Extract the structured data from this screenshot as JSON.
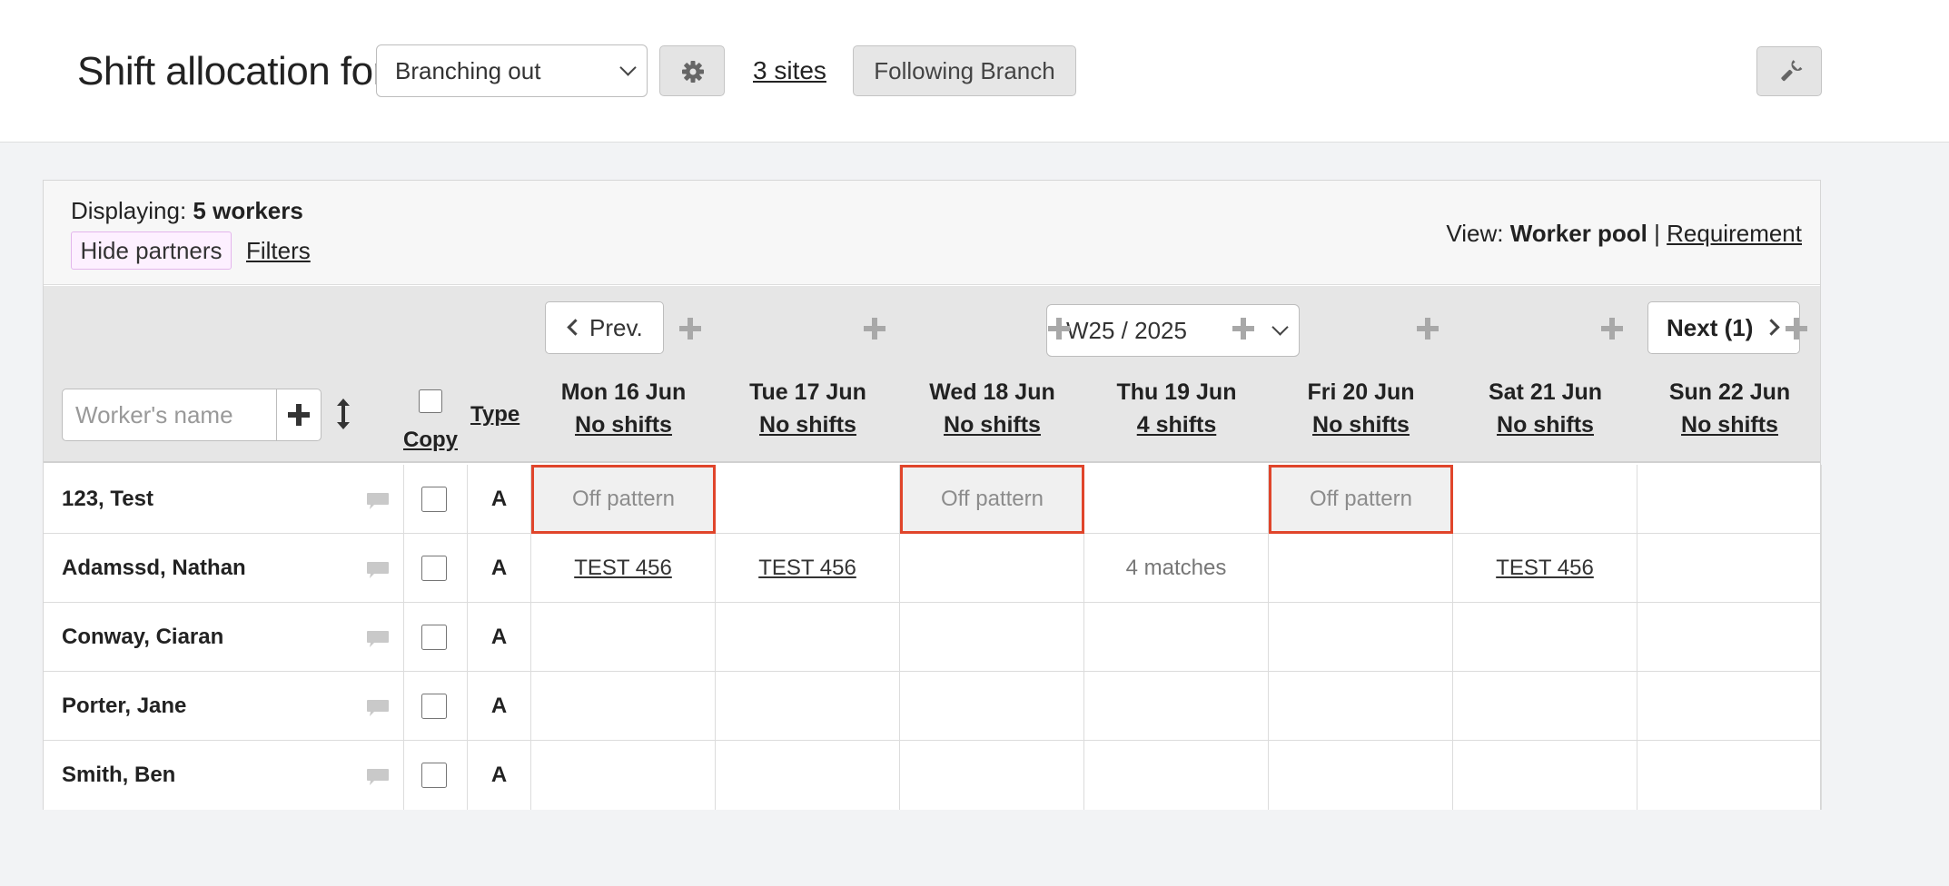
{
  "header": {
    "title": "Shift allocation for",
    "branch_selected": "Branching out",
    "sites_link": "3 sites",
    "following_label": "Following Branch"
  },
  "panel": {
    "displaying_label": "Displaying:",
    "displaying_count": "5 workers",
    "hide_partners_label": "Hide partners",
    "filters_label": "Filters",
    "view_label": "View:",
    "view_active": "Worker pool",
    "view_separator": "|",
    "view_other": "Requirement"
  },
  "nav": {
    "prev_label": "Prev.",
    "week_selected": "W25 / 2025",
    "next_label": "Next (1)"
  },
  "columns": {
    "worker_placeholder": "Worker's name",
    "copy_label": "Copy",
    "type_label": "Type"
  },
  "days": [
    {
      "label": "Mon 16 Jun",
      "shifts": "No shifts"
    },
    {
      "label": "Tue 17 Jun",
      "shifts": "No shifts"
    },
    {
      "label": "Wed 18 Jun",
      "shifts": "No shifts"
    },
    {
      "label": "Thu 19 Jun",
      "shifts": "4 shifts"
    },
    {
      "label": "Fri 20 Jun",
      "shifts": "No shifts"
    },
    {
      "label": "Sat 21 Jun",
      "shifts": "No shifts"
    },
    {
      "label": "Sun 22 Jun",
      "shifts": "No shifts"
    }
  ],
  "workers": [
    {
      "name": "123, Test",
      "type": "A",
      "cells": [
        "Off pattern",
        "",
        "Off pattern",
        "",
        "Off pattern",
        "",
        ""
      ]
    },
    {
      "name": "Adamssd, Nathan",
      "type": "A",
      "cells": [
        "TEST 456",
        "TEST 456",
        "",
        "4 matches",
        "",
        "TEST 456",
        ""
      ]
    },
    {
      "name": "Conway, Ciaran",
      "type": "A",
      "cells": [
        "",
        "",
        "",
        "",
        "",
        "",
        ""
      ]
    },
    {
      "name": "Porter, Jane",
      "type": "A",
      "cells": [
        "",
        "",
        "",
        "",
        "",
        "",
        ""
      ]
    },
    {
      "name": "Smith, Ben",
      "type": "A",
      "cells": [
        "",
        "",
        "",
        "",
        "",
        "",
        ""
      ]
    }
  ],
  "colors": {
    "off_pattern_border": "#e0452b",
    "header_bg": "#e6e6e6",
    "hide_partners_border": "#e3b6ec"
  }
}
